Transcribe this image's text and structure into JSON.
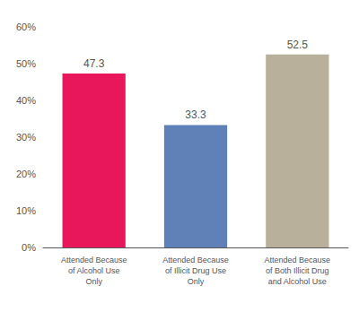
{
  "chart_data": {
    "type": "bar",
    "categories": [
      "Attended Because\nof Alcohol Use\nOnly",
      "Attended Because\nof Illicit Drug Use\nOnly",
      "Attended Because\nof Both Illicit Drug\nand Alcohol Use"
    ],
    "values": [
      47.3,
      33.3,
      52.5
    ],
    "colors": [
      "#E8175B",
      "#6080B8",
      "#B8B09A"
    ],
    "ylim": [
      0,
      60
    ],
    "yticks": [
      {
        "value": 0,
        "label": "0%"
      },
      {
        "value": 10,
        "label": "10%"
      },
      {
        "value": 20,
        "label": "20%"
      },
      {
        "value": 30,
        "label": "30%"
      },
      {
        "value": 40,
        "label": "40%"
      },
      {
        "value": 50,
        "label": "50%"
      },
      {
        "value": 60,
        "label": "60%"
      }
    ],
    "data_labels": true,
    "grid": false
  }
}
